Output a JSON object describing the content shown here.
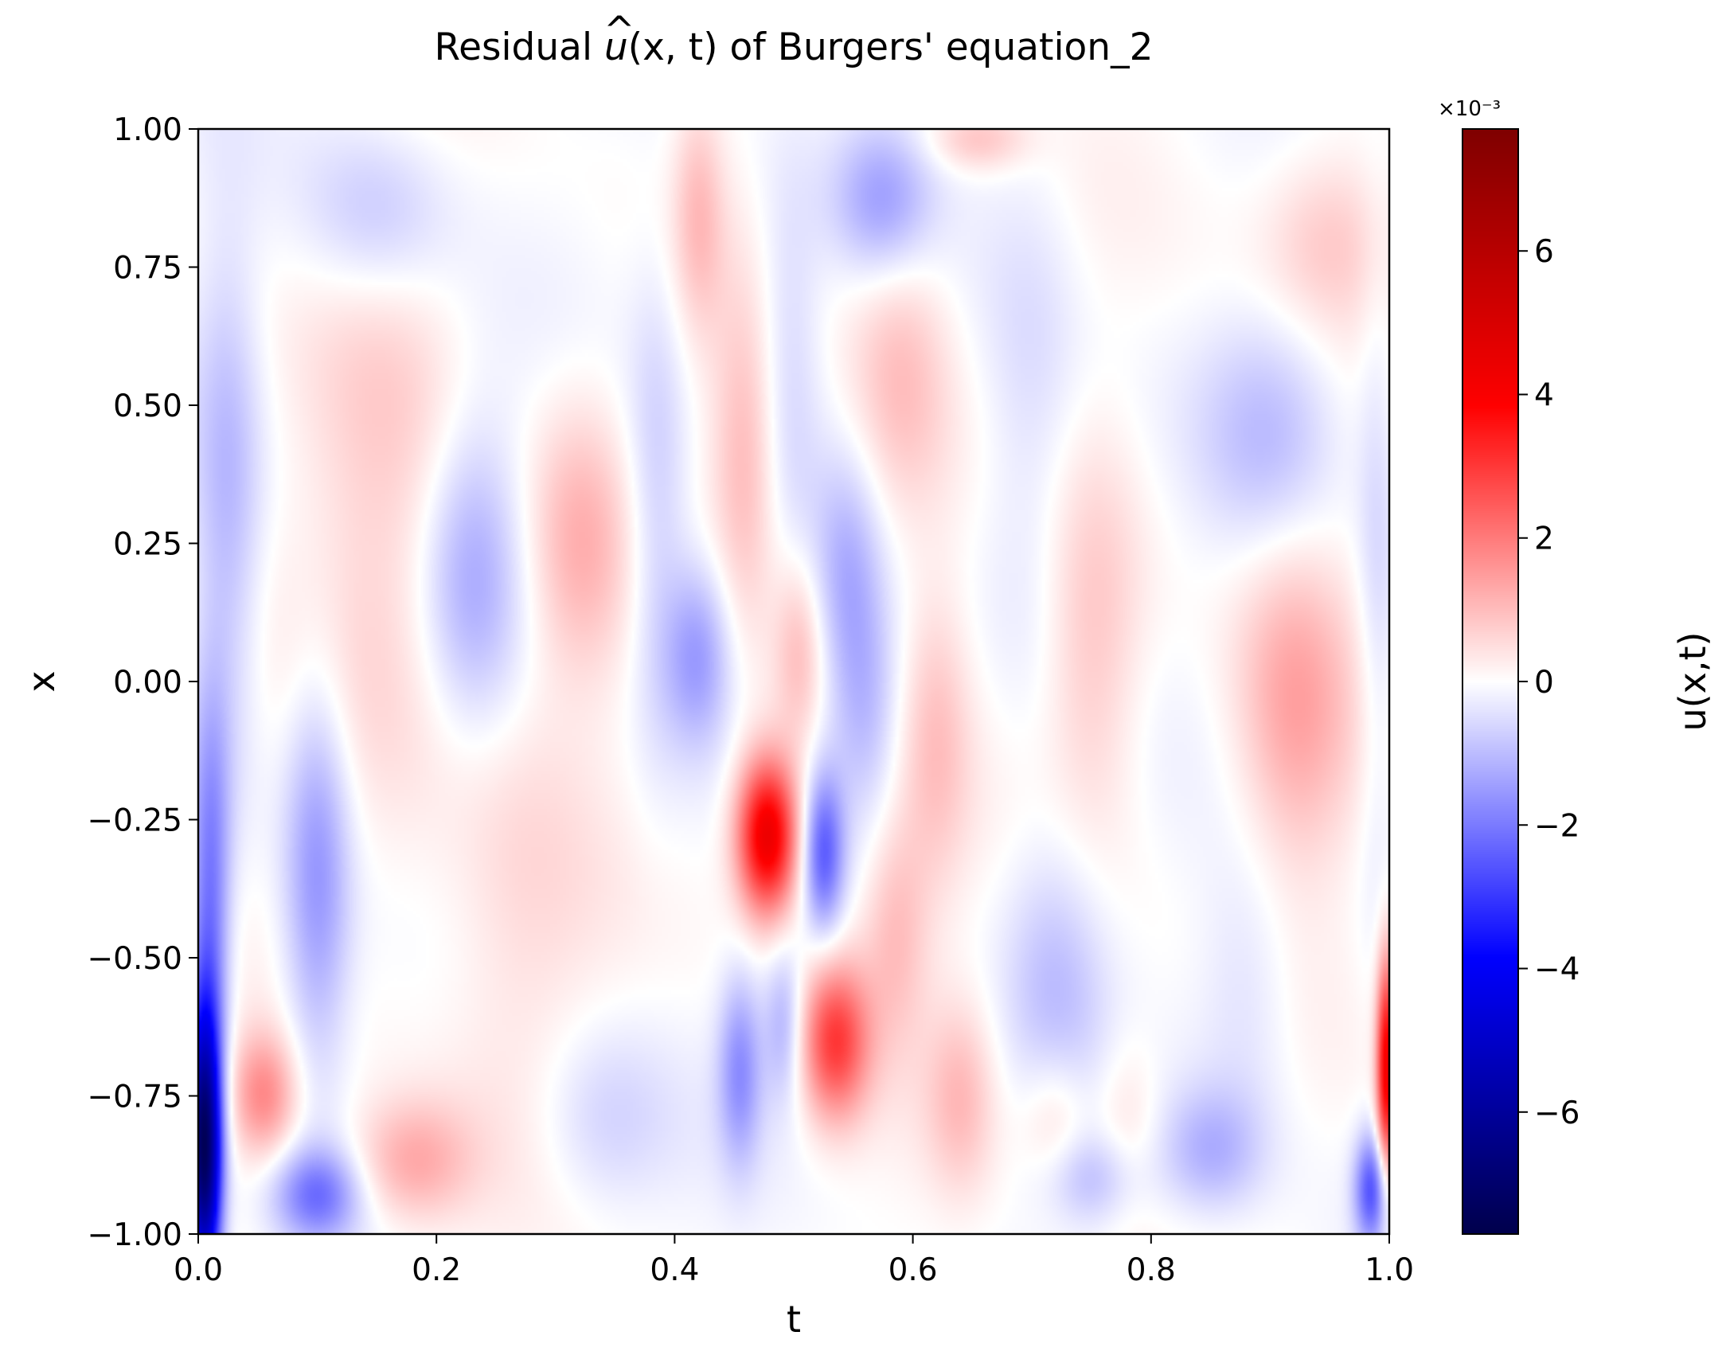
{
  "chart_data": {
    "type": "heatmap",
    "title_text": "Residual ",
    "title_math_base": "u",
    "title_math_args": "(x, t)",
    "title_tail": " of Burgers' equation_2",
    "xlabel": "t",
    "ylabel": "x",
    "xlim": [
      0.0,
      1.0
    ],
    "ylim": [
      -1.0,
      1.0
    ],
    "x_ticks": [
      0.0,
      0.2,
      0.4,
      0.6,
      0.8,
      1.0
    ],
    "x_tick_labels": [
      "0.0",
      "0.2",
      "0.4",
      "0.6",
      "0.8",
      "1.0"
    ],
    "y_ticks": [
      1.0,
      0.75,
      0.5,
      0.25,
      0.0,
      -0.25,
      -0.5,
      -0.75,
      -1.0
    ],
    "y_tick_labels": [
      "1.00",
      "0.75",
      "0.50",
      "0.25",
      "0.00",
      "−0.25",
      "−0.50",
      "−0.75",
      "−1.00"
    ],
    "colormap": "seismic",
    "colormap_stops": [
      "#00004c",
      "#0000ff",
      "#ffffff",
      "#ff0000",
      "#7f0000"
    ],
    "colorbar": {
      "label": "u(x,t)",
      "range": [
        -0.0077,
        0.0077
      ],
      "exponent_label": "×10⁻³",
      "ticks": [
        6,
        4,
        2,
        0,
        -2,
        -4,
        -6
      ],
      "tick_labels": [
        "6",
        "4",
        "2",
        "0",
        "−2",
        "−4",
        "−6"
      ]
    },
    "notable_regions": [
      {
        "t": 0.48,
        "x": -0.28,
        "value": 0.0045
      },
      {
        "t": 0.53,
        "x": -0.3,
        "value": -0.002
      },
      {
        "t": 0.53,
        "x": -0.65,
        "value": 0.0028
      },
      {
        "t": 0.005,
        "x": -0.85,
        "value": -0.007
      },
      {
        "t": 0.998,
        "x": -0.7,
        "value": 0.004
      },
      {
        "t": 0.92,
        "x": -0.05,
        "value": 0.0012
      },
      {
        "t": 0.57,
        "x": 0.87,
        "value": -0.0013
      },
      {
        "t": 0.42,
        "x": 0.05,
        "value": -0.0015
      }
    ]
  }
}
